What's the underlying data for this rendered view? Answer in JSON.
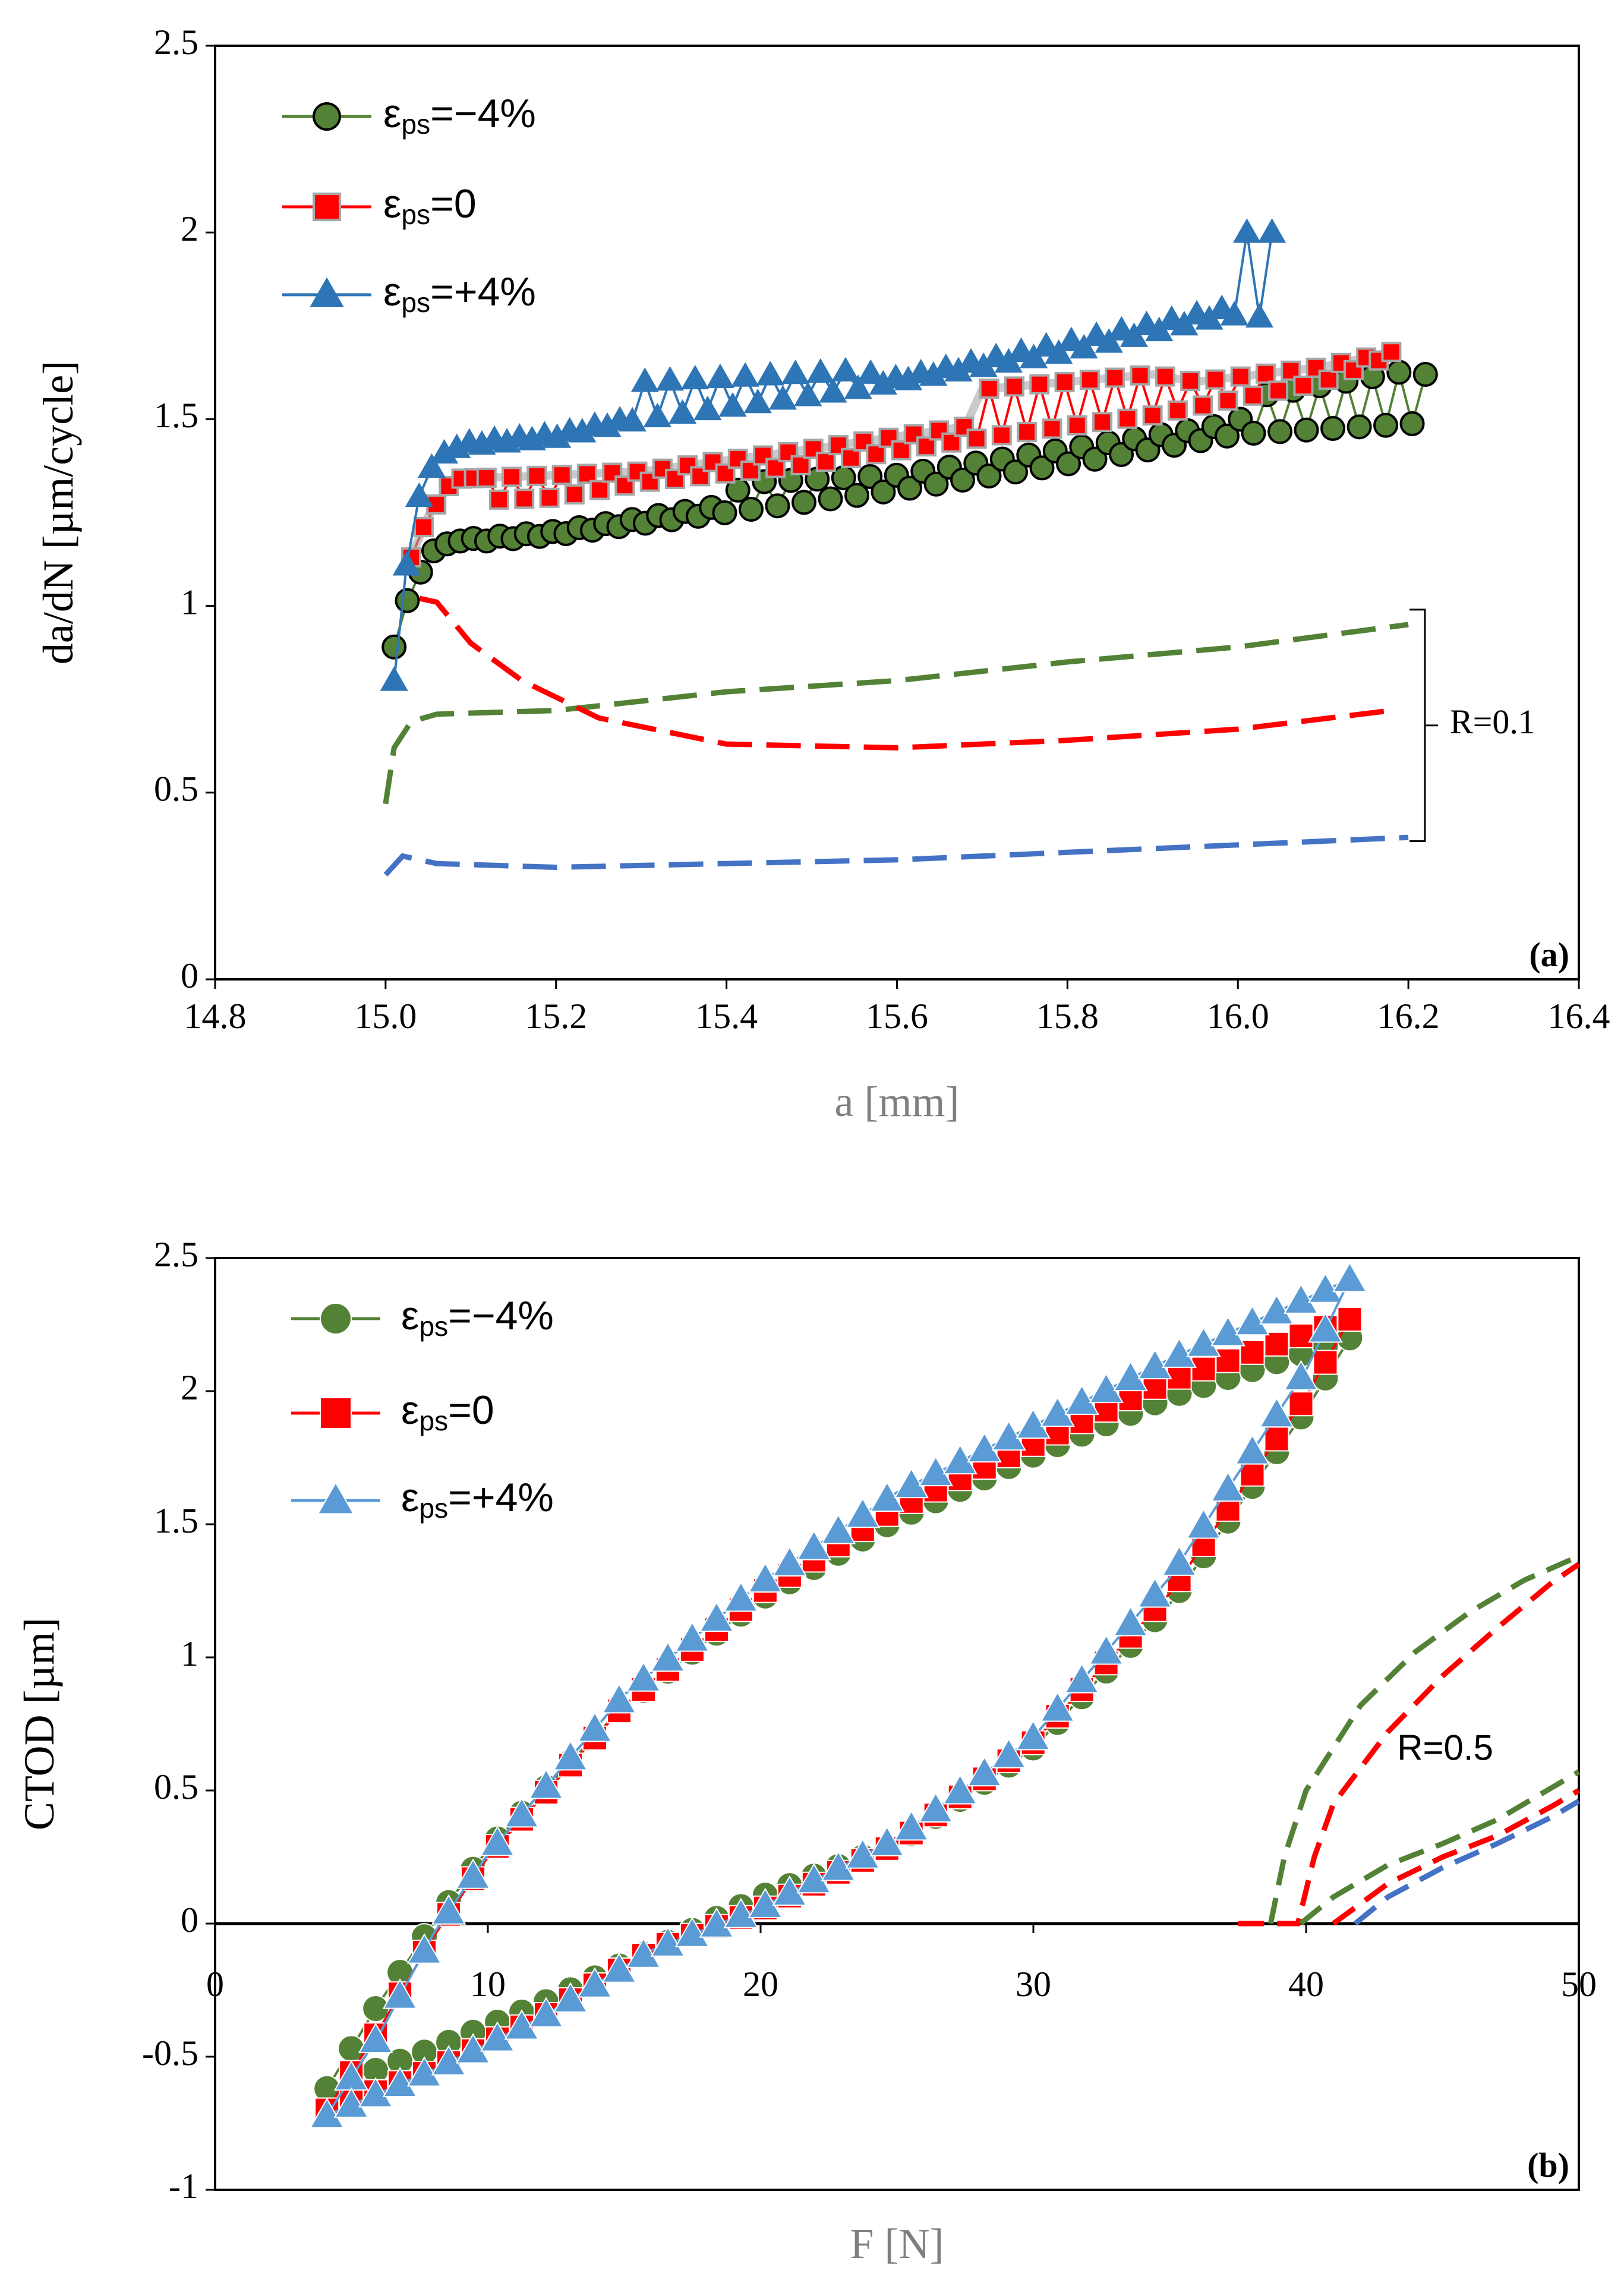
{
  "chart_data": [
    {
      "type": "scatter",
      "panel_label": "(a)",
      "xlabel": "a [mm]",
      "ylabel": "da/dN [µm/cycle]",
      "xlim": [
        14.8,
        16.4
      ],
      "ylim": [
        0,
        2.5
      ],
      "xticks": [
        "14.8",
        "15.0",
        "15.2",
        "15.4",
        "15.6",
        "15.8",
        "16.0",
        "16.2",
        "16.4"
      ],
      "yticks": [
        "0",
        "0.5",
        "1",
        "1.5",
        "2",
        "2.5"
      ],
      "grid": false,
      "legend_position": "top-left",
      "annotation": "R=0.1",
      "series": [
        {
          "name": "εps=−4%",
          "symbol": "ε",
          "subscript": "ps",
          "value_text": "=−4%",
          "color": "#538135",
          "edge": "#000000",
          "marker": "circle",
          "trend_low": [
            [
              15.01,
              0.89
            ],
            [
              15.03,
              1.05
            ],
            [
              15.06,
              1.15
            ],
            [
              15.1,
              1.17
            ],
            [
              15.2,
              1.19
            ],
            [
              15.4,
              1.25
            ],
            [
              15.6,
              1.31
            ],
            [
              15.8,
              1.38
            ],
            [
              16.0,
              1.46
            ],
            [
              16.22,
              1.49
            ]
          ],
          "trend_high": [
            [
              15.01,
              0.89
            ],
            [
              15.03,
              1.05
            ],
            [
              15.06,
              1.16
            ],
            [
              15.1,
              1.18
            ],
            [
              15.2,
              1.2
            ],
            [
              15.4,
              1.27
            ],
            [
              15.42,
              1.33
            ],
            [
              15.6,
              1.35
            ],
            [
              15.8,
              1.42
            ],
            [
              16.0,
              1.49
            ],
            [
              16.02,
              1.56
            ],
            [
              16.2,
              1.63
            ],
            [
              16.22,
              1.62
            ]
          ]
        },
        {
          "name": "εps=0",
          "symbol": "ε",
          "subscript": "ps",
          "value_text": "=0",
          "color": "#ff0000",
          "edge": "#a6a6a6",
          "marker": "square",
          "trend_low": [
            [
              15.03,
              1.13
            ],
            [
              15.05,
              1.22
            ],
            [
              15.08,
              1.28
            ],
            [
              15.2,
              1.29
            ],
            [
              15.3,
              1.33
            ],
            [
              15.5,
              1.38
            ],
            [
              15.7,
              1.45
            ],
            [
              15.9,
              1.51
            ],
            [
              16.1,
              1.6
            ],
            [
              16.18,
              1.67
            ]
          ],
          "trend_high": [
            [
              15.03,
              1.13
            ],
            [
              15.05,
              1.24
            ],
            [
              15.08,
              1.34
            ],
            [
              15.2,
              1.35
            ],
            [
              15.3,
              1.36
            ],
            [
              15.5,
              1.42
            ],
            [
              15.68,
              1.48
            ],
            [
              15.7,
              1.58
            ],
            [
              15.9,
              1.62
            ],
            [
              15.95,
              1.6
            ],
            [
              16.1,
              1.64
            ],
            [
              16.18,
              1.68
            ]
          ]
        },
        {
          "name": "εps=+4%",
          "symbol": "ε",
          "subscript": "ps",
          "value_text": "=+4%",
          "color": "#2e75b6",
          "edge": "#2e75b6",
          "marker": "triangle",
          "trend_low": [
            [
              15.01,
              0.8
            ],
            [
              15.02,
              1.05
            ],
            [
              15.04,
              1.28
            ],
            [
              15.06,
              1.38
            ],
            [
              15.1,
              1.43
            ],
            [
              15.2,
              1.45
            ],
            [
              15.3,
              1.5
            ],
            [
              15.55,
              1.58
            ],
            [
              15.8,
              1.68
            ],
            [
              15.99,
              1.78
            ],
            [
              16.04,
              1.77
            ]
          ],
          "trend_high": [
            [
              15.01,
              0.8
            ],
            [
              15.02,
              1.05
            ],
            [
              15.04,
              1.3
            ],
            [
              15.06,
              1.4
            ],
            [
              15.1,
              1.44
            ],
            [
              15.2,
              1.46
            ],
            [
              15.28,
              1.5
            ],
            [
              15.3,
              1.6
            ],
            [
              15.55,
              1.63
            ],
            [
              15.6,
              1.61
            ],
            [
              15.99,
              1.8
            ],
            [
              16.0,
              2.0
            ],
            [
              16.04,
              2.0
            ]
          ]
        }
      ],
      "reference_curves": [
        {
          "name": "R=0.1 εps=−4%",
          "color": "#538135",
          "points": [
            [
              15.0,
              0.47
            ],
            [
              15.01,
              0.62
            ],
            [
              15.03,
              0.69
            ],
            [
              15.06,
              0.71
            ],
            [
              15.2,
              0.72
            ],
            [
              15.4,
              0.77
            ],
            [
              15.6,
              0.8
            ],
            [
              15.8,
              0.85
            ],
            [
              16.0,
              0.89
            ],
            [
              16.2,
              0.95
            ]
          ]
        },
        {
          "name": "R=0.1 εps=0",
          "color": "#ff0000",
          "points": [
            [
              15.04,
              1.02
            ],
            [
              15.06,
              1.01
            ],
            [
              15.1,
              0.9
            ],
            [
              15.16,
              0.8
            ],
            [
              15.25,
              0.7
            ],
            [
              15.4,
              0.63
            ],
            [
              15.6,
              0.62
            ],
            [
              15.8,
              0.64
            ],
            [
              16.0,
              0.67
            ],
            [
              16.18,
              0.72
            ]
          ]
        },
        {
          "name": "R=0.1 εps=+4%",
          "color": "#4472c4",
          "points": [
            [
              15.0,
              0.28
            ],
            [
              15.02,
              0.33
            ],
            [
              15.06,
              0.31
            ],
            [
              15.2,
              0.3
            ],
            [
              15.4,
              0.31
            ],
            [
              15.6,
              0.32
            ],
            [
              15.8,
              0.34
            ],
            [
              16.0,
              0.36
            ],
            [
              16.2,
              0.38
            ]
          ]
        }
      ]
    },
    {
      "type": "scatter",
      "panel_label": "(b)",
      "xlabel": "F [N]",
      "ylabel": "CTOD [µm]",
      "xlim": [
        0,
        50
      ],
      "ylim": [
        -1,
        2.5
      ],
      "xticks": [
        "0",
        "10",
        "20",
        "30",
        "40",
        "50"
      ],
      "yticks": [
        "-1",
        "-0.5",
        "0",
        "0.5",
        "1",
        "1.5",
        "2",
        "2.5"
      ],
      "grid": false,
      "legend_position": "top-left",
      "annotation": "R=0.5",
      "series": [
        {
          "name": "εps=−4%",
          "symbol": "ε",
          "subscript": "ps",
          "value_text": "=−4%",
          "color": "#538135",
          "marker": "circle",
          "loading": [
            [
              4.1,
              -0.62
            ],
            [
              6,
              -0.3
            ],
            [
              8,
              0.0
            ],
            [
              10,
              0.28
            ],
            [
              15,
              0.82
            ],
            [
              20,
              1.22
            ],
            [
              25,
              1.52
            ],
            [
              30,
              1.76
            ],
            [
              35,
              1.98
            ],
            [
              41.6,
              2.2
            ]
          ],
          "unloading": [
            [
              41.6,
              2.2
            ],
            [
              40,
              1.93
            ],
            [
              35,
              1.2
            ],
            [
              30,
              0.66
            ],
            [
              25,
              0.3
            ],
            [
              20,
              0.1
            ],
            [
              16,
              -0.1
            ],
            [
              12,
              -0.3
            ],
            [
              8,
              -0.47
            ],
            [
              4.1,
              -0.62
            ]
          ]
        },
        {
          "name": "εps=0",
          "symbol": "ε",
          "subscript": "ps",
          "value_text": "=0",
          "color": "#ff0000",
          "marker": "square",
          "loading": [
            [
              4.1,
              -0.7
            ],
            [
              6,
              -0.4
            ],
            [
              8,
              -0.05
            ],
            [
              10,
              0.25
            ],
            [
              15,
              0.82
            ],
            [
              20,
              1.24
            ],
            [
              25,
              1.56
            ],
            [
              30,
              1.8
            ],
            [
              35,
              2.04
            ],
            [
              41.6,
              2.27
            ]
          ],
          "unloading": [
            [
              41.6,
              2.27
            ],
            [
              40,
              1.98
            ],
            [
              35,
              1.24
            ],
            [
              30,
              0.68
            ],
            [
              25,
              0.3
            ],
            [
              20,
              0.05
            ],
            [
              16,
              -0.1
            ],
            [
              12,
              -0.35
            ],
            [
              8,
              -0.55
            ],
            [
              4.1,
              -0.7
            ]
          ]
        },
        {
          "name": "εps=+4%",
          "symbol": "ε",
          "subscript": "ps",
          "value_text": "=+4%",
          "color": "#5b9bd5",
          "marker": "triangle",
          "loading": [
            [
              4.1,
              -0.72
            ],
            [
              6,
              -0.42
            ],
            [
              8,
              -0.04
            ],
            [
              10,
              0.26
            ],
            [
              15,
              0.86
            ],
            [
              20,
              1.28
            ],
            [
              25,
              1.62
            ],
            [
              30,
              1.87
            ],
            [
              35,
              2.12
            ],
            [
              41.6,
              2.42
            ]
          ],
          "unloading": [
            [
              41.6,
              2.42
            ],
            [
              40,
              2.08
            ],
            [
              35,
              1.3
            ],
            [
              30,
              0.7
            ],
            [
              25,
              0.32
            ],
            [
              20,
              0.06
            ],
            [
              16,
              -0.1
            ],
            [
              12,
              -0.35
            ],
            [
              8,
              -0.55
            ],
            [
              4.1,
              -0.72
            ]
          ]
        }
      ],
      "reference_curves": [
        {
          "name": "R=0.5 εps=−4% loading",
          "color": "#538135",
          "points": [
            [
              38.7,
              0.0
            ],
            [
              39.2,
              0.25
            ],
            [
              40,
              0.5
            ],
            [
              42,
              0.82
            ],
            [
              44,
              1.02
            ],
            [
              46,
              1.17
            ],
            [
              48,
              1.29
            ],
            [
              50,
              1.38
            ]
          ]
        },
        {
          "name": "R=0.5 εps=0 loading",
          "color": "#ff0000",
          "points": [
            [
              37.5,
              0.0
            ],
            [
              39.7,
              0.0
            ],
            [
              40.3,
              0.25
            ],
            [
              41,
              0.45
            ],
            [
              43,
              0.72
            ],
            [
              45,
              0.93
            ],
            [
              47,
              1.11
            ],
            [
              49,
              1.28
            ],
            [
              50,
              1.35
            ]
          ]
        },
        {
          "name": "R=0.5 εps=−4% unloading",
          "color": "#538135",
          "points": [
            [
              39.8,
              0.0
            ],
            [
              41,
              0.1
            ],
            [
              43,
              0.22
            ],
            [
              45,
              0.3
            ],
            [
              47,
              0.39
            ],
            [
              49,
              0.51
            ],
            [
              50,
              0.57
            ]
          ]
        },
        {
          "name": "R=0.5 εps=0 unloading",
          "color": "#ff0000",
          "points": [
            [
              41,
              0.0
            ],
            [
              43,
              0.15
            ],
            [
              45,
              0.25
            ],
            [
              47,
              0.33
            ],
            [
              49,
              0.44
            ],
            [
              50,
              0.5
            ]
          ]
        },
        {
          "name": "R=0.5 εps=+4% unloading",
          "color": "#4472c4",
          "points": [
            [
              41.8,
              0.0
            ],
            [
              43,
              0.1
            ],
            [
              45,
              0.21
            ],
            [
              47,
              0.3
            ],
            [
              49,
              0.4
            ],
            [
              50,
              0.46
            ]
          ]
        }
      ]
    }
  ]
}
